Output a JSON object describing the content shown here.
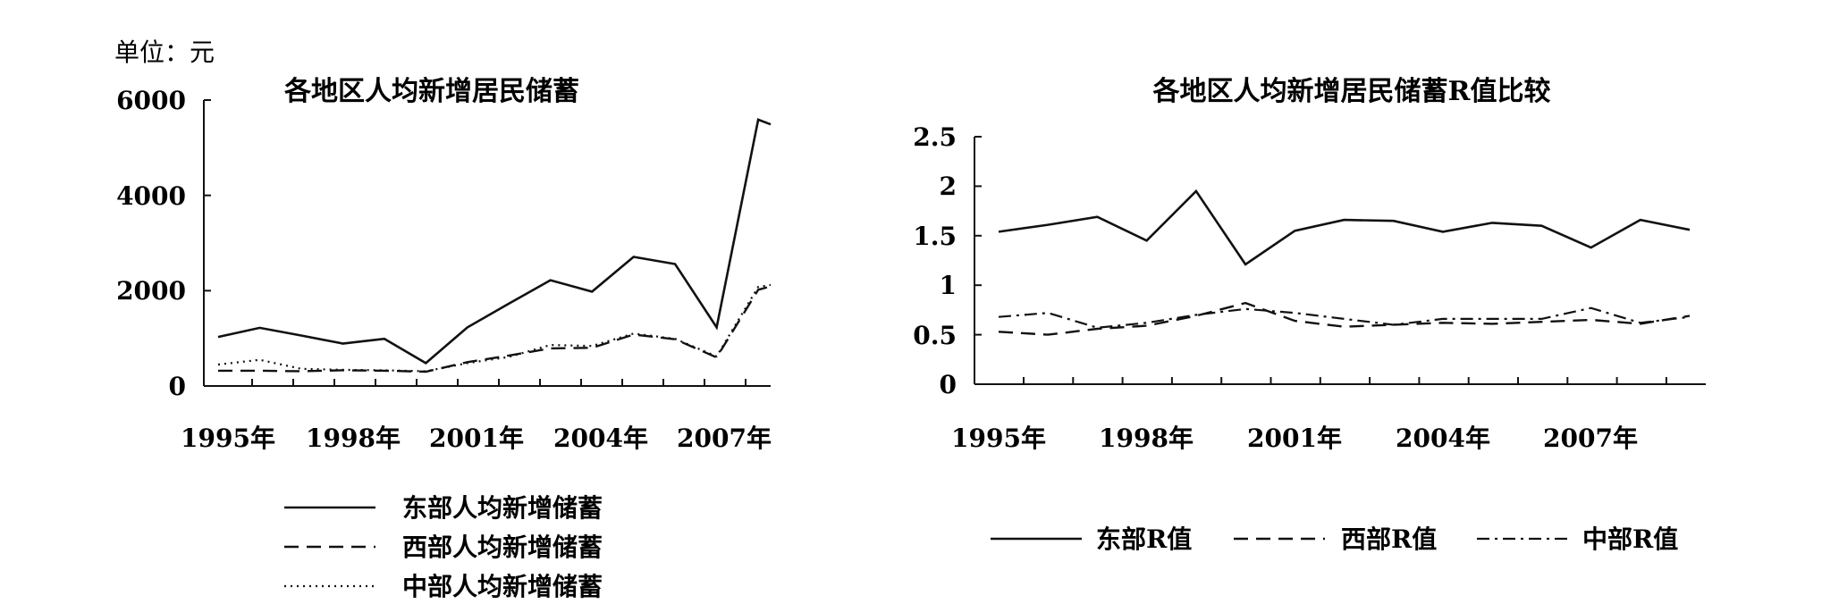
{
  "chart_data": [
    {
      "type": "line",
      "title": "各地区人均新增居民储蓄",
      "unit_label": "单位：元",
      "xlabel": "",
      "ylabel": "",
      "ylim": [
        0,
        6000
      ],
      "yticks": [
        "6000",
        "4000",
        "2000",
        "0"
      ],
      "xtick_labels": [
        "1995年",
        "1998年",
        "2001年",
        "2004年",
        "2007年"
      ],
      "x": [
        1995,
        1996,
        1997,
        1998,
        1999,
        2000,
        2001,
        2002,
        2003,
        2004,
        2005,
        2006,
        2007,
        2008,
        2008.3
      ],
      "grid": false,
      "legend_position": "bottom",
      "series": [
        {
          "name": "东部人均新增储蓄",
          "style": "solid",
          "values": [
            1030,
            1220,
            1060,
            890,
            990,
            480,
            1230,
            1730,
            2220,
            1980,
            2710,
            2560,
            1230,
            5590,
            5490
          ]
        },
        {
          "name": "西部人均新增储蓄",
          "style": "dash",
          "values": [
            320,
            320,
            310,
            330,
            320,
            300,
            500,
            640,
            790,
            800,
            1080,
            980,
            600,
            2020,
            2090
          ]
        },
        {
          "name": "中部人均新增储蓄",
          "style": "dot",
          "values": [
            450,
            550,
            360,
            340,
            330,
            310,
            480,
            610,
            860,
            840,
            1100,
            990,
            620,
            2080,
            2120
          ]
        }
      ]
    },
    {
      "type": "line",
      "title": "各地区人均新增居民储蓄R值比较",
      "xlabel": "",
      "ylabel": "",
      "ylim": [
        0,
        2.5
      ],
      "yticks": [
        "2.5",
        "2",
        "1.5",
        "1",
        "0.5",
        "0"
      ],
      "xtick_labels": [
        "1995年",
        "1998年",
        "2001年",
        "2004年",
        "2007年"
      ],
      "x": [
        1995,
        1996,
        1997,
        1998,
        1999,
        2000,
        2001,
        2002,
        2003,
        2004,
        2005,
        2006,
        2007,
        2008,
        2009
      ],
      "grid": false,
      "legend_position": "bottom",
      "series": [
        {
          "name": "东部R值",
          "style": "solid",
          "values": [
            1.54,
            1.61,
            1.69,
            1.45,
            1.95,
            1.21,
            1.55,
            1.66,
            1.65,
            1.54,
            1.63,
            1.6,
            1.38,
            1.66,
            1.56
          ]
        },
        {
          "name": "西部R值",
          "style": "dash",
          "values": [
            0.53,
            0.5,
            0.56,
            0.59,
            0.69,
            0.82,
            0.64,
            0.58,
            0.6,
            0.62,
            0.61,
            0.63,
            0.65,
            0.61,
            0.69
          ]
        },
        {
          "name": "中部R值",
          "style": "dashdot",
          "values": [
            0.68,
            0.72,
            0.57,
            0.62,
            0.7,
            0.76,
            0.72,
            0.66,
            0.6,
            0.66,
            0.66,
            0.66,
            0.77,
            0.62,
            0.68
          ]
        }
      ]
    }
  ]
}
